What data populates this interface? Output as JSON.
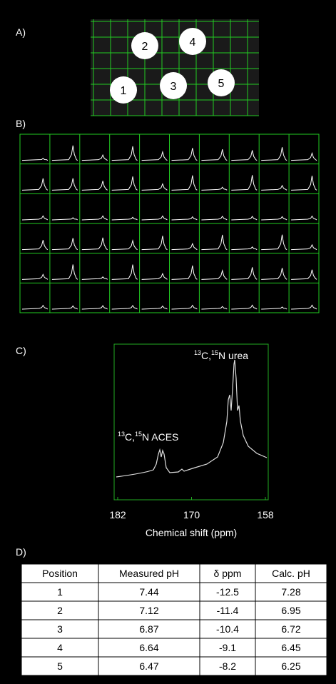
{
  "panel_labels": [
    "A)",
    "B)",
    "C)",
    "D)"
  ],
  "phantom": {
    "positions": [
      "1",
      "2",
      "3",
      "4",
      "5"
    ]
  },
  "spectrum": {
    "xlabel": "Chemical shift (ppm)",
    "xlim": [
      182,
      158
    ],
    "xticks": [
      182,
      170,
      158
    ],
    "annotations": [
      {
        "parts": [
          "13",
          "C,",
          "15",
          "N urea"
        ]
      },
      {
        "parts": [
          "13",
          "C,",
          "15",
          "N ACES"
        ]
      }
    ]
  },
  "table": {
    "header": [
      "Position",
      "Measured pH",
      "δ ppm",
      "Calc. pH"
    ],
    "rows": [
      [
        "1",
        "7.44",
        "-12.5",
        "7.28"
      ],
      [
        "2",
        "7.12",
        "-11.4",
        "6.95"
      ],
      [
        "3",
        "6.87",
        "-10.4",
        "6.72"
      ],
      [
        "4",
        "6.64",
        "-9.1",
        "6.45"
      ],
      [
        "5",
        "6.47",
        "-8.2",
        "6.25"
      ]
    ]
  }
}
